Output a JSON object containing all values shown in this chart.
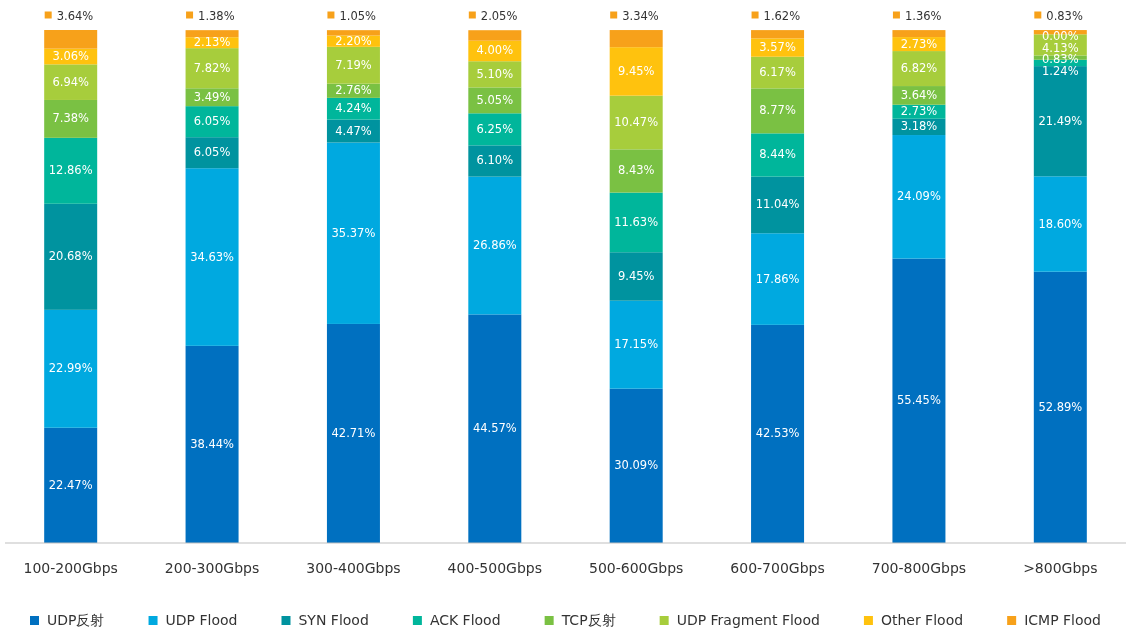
{
  "chart_data": {
    "type": "bar",
    "stacked": true,
    "legend": "bottom",
    "categories": [
      "100-200Gbps",
      "200-300Gbps",
      "300-400Gbps",
      "400-500Gbps",
      "500-600Gbps",
      "600-700Gbps",
      "700-800Gbps",
      ">800Gbps"
    ],
    "series": [
      {
        "name": "UDP反射",
        "color": "#0070c0",
        "values": [
          22.47,
          38.44,
          42.71,
          44.57,
          30.09,
          42.53,
          55.45,
          52.89
        ],
        "value_labels": [
          "22.47%",
          "38.44%",
          "42.71%",
          "44.57%",
          "30.09%",
          "42.53%",
          "55.45%",
          "52.89%"
        ]
      },
      {
        "name": "UDP Flood",
        "color": "#00a9e0",
        "values": [
          22.99,
          34.63,
          35.37,
          26.86,
          17.15,
          17.86,
          24.09,
          18.6
        ],
        "value_labels": [
          "22.99%",
          "34.63%",
          "35.37%",
          "26.86%",
          "17.15%",
          "17.86%",
          "24.09%",
          "18.60%"
        ]
      },
      {
        "name": "SYN Flood",
        "color": "#00939f",
        "values": [
          20.68,
          6.05,
          4.47,
          6.1,
          9.45,
          11.04,
          3.18,
          21.49
        ],
        "value_labels": [
          "20.68%",
          "6.05%",
          "4.47%",
          "6.10%",
          "9.45%",
          "11.04%",
          "3.18%",
          "21.49%"
        ]
      },
      {
        "name": "ACK Flood",
        "color": "#00b69b",
        "values": [
          12.86,
          6.05,
          4.24,
          6.25,
          11.63,
          8.44,
          2.73,
          1.24
        ],
        "value_labels": [
          "12.86%",
          "6.05%",
          "4.24%",
          "6.25%",
          "11.63%",
          "8.44%",
          "2.73%",
          "1.24%"
        ]
      },
      {
        "name": "TCP反射",
        "color": "#7ac143",
        "values": [
          7.38,
          3.49,
          2.76,
          5.05,
          8.43,
          8.77,
          3.64,
          0.83
        ],
        "value_labels": [
          "7.38%",
          "3.49%",
          "2.76%",
          "5.05%",
          "8.43%",
          "8.77%",
          "3.64%",
          "0.83%"
        ]
      },
      {
        "name": "UDP Fragment Flood",
        "color": "#a7cd3c",
        "values": [
          6.94,
          7.82,
          7.19,
          5.1,
          10.47,
          6.17,
          6.82,
          4.13
        ],
        "value_labels": [
          "6.94%",
          "7.82%",
          "7.19%",
          "5.10%",
          "10.47%",
          "6.17%",
          "6.82%",
          "4.13%"
        ]
      },
      {
        "name": "Other Flood",
        "color": "#ffc20e",
        "values": [
          3.06,
          2.13,
          2.2,
          4.0,
          9.45,
          3.57,
          2.73,
          0.0
        ],
        "value_labels": [
          "3.06%",
          "2.13%",
          "2.20%",
          "4.00%",
          "9.45%",
          "3.57%",
          "2.73%",
          "0.00%"
        ]
      },
      {
        "name": "ICMP Flood",
        "color": "#f7a11a",
        "values": [
          3.64,
          1.38,
          1.05,
          2.05,
          3.34,
          1.62,
          1.36,
          0.83
        ],
        "value_labels": [
          "3.64%",
          "1.38%",
          "1.05%",
          "2.05%",
          "3.34%",
          "1.62%",
          "1.36%",
          "0.83%"
        ]
      }
    ]
  }
}
